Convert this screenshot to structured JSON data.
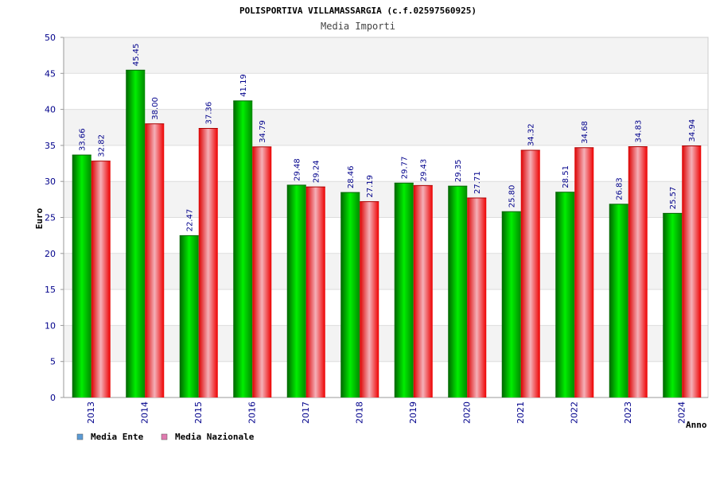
{
  "chart_data": {
    "type": "bar",
    "title": "POLISPORTIVA VILLAMASSARGIA (c.f.02597560925)",
    "subtitle": "Media Importi",
    "xlabel": "Anno",
    "ylabel": "Euro",
    "ylim": [
      0,
      50
    ],
    "yticks": [
      0,
      5,
      10,
      15,
      20,
      25,
      30,
      35,
      40,
      45,
      50
    ],
    "categories": [
      "2013",
      "2014",
      "2015",
      "2016",
      "2017",
      "2018",
      "2019",
      "2020",
      "2021",
      "2022",
      "2023",
      "2024"
    ],
    "series": [
      {
        "name": "Media Ente",
        "color": "#00cc00",
        "legend_color": "#5b9bd5",
        "values": [
          33.66,
          45.45,
          22.47,
          41.19,
          29.48,
          28.46,
          29.77,
          29.35,
          25.8,
          28.51,
          26.83,
          25.57
        ],
        "labels": [
          "33.66",
          "45.45",
          "22.47",
          "41.19",
          "29.48",
          "28.46",
          "29.77",
          "29.35",
          "25.80",
          "28.51",
          "26.83",
          "25.57"
        ]
      },
      {
        "name": "Media Nazionale",
        "color": "#ff0000",
        "legend_color": "#e07bb0",
        "values": [
          32.82,
          38.0,
          37.36,
          34.79,
          29.24,
          27.19,
          29.43,
          27.71,
          34.32,
          34.68,
          34.83,
          34.94
        ],
        "labels": [
          "32.82",
          "38.00",
          "37.36",
          "34.79",
          "29.24",
          "27.19",
          "29.43",
          "27.71",
          "34.32",
          "34.68",
          "34.83",
          "34.94"
        ]
      }
    ],
    "grid": true,
    "legend_position": "bottom-left"
  }
}
